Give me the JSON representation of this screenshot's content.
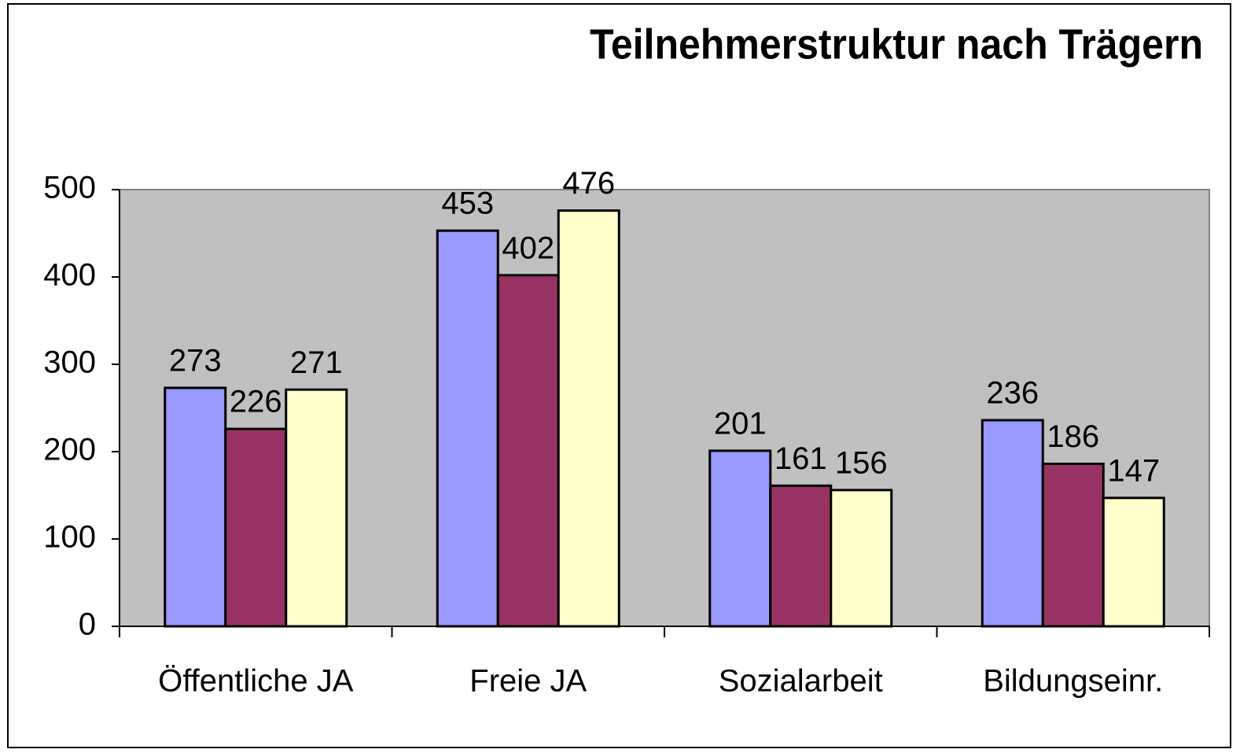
{
  "chart_data": {
    "type": "bar",
    "title": "Teilnehmerstruktur nach Trägern",
    "categories": [
      "Öffentliche JA",
      "Freie JA",
      "Sozialarbeit",
      "Bildungseinr."
    ],
    "series": [
      {
        "color": "#9999ff",
        "values": [
          273,
          453,
          201,
          236
        ]
      },
      {
        "color": "#993366",
        "values": [
          226,
          402,
          161,
          186
        ]
      },
      {
        "color": "#ffffcc",
        "values": [
          271,
          476,
          156,
          147
        ]
      }
    ],
    "ylim": [
      0,
      500
    ],
    "yticks": [
      0,
      100,
      200,
      300,
      400,
      500
    ],
    "plot_background": "#c0c0c0"
  }
}
